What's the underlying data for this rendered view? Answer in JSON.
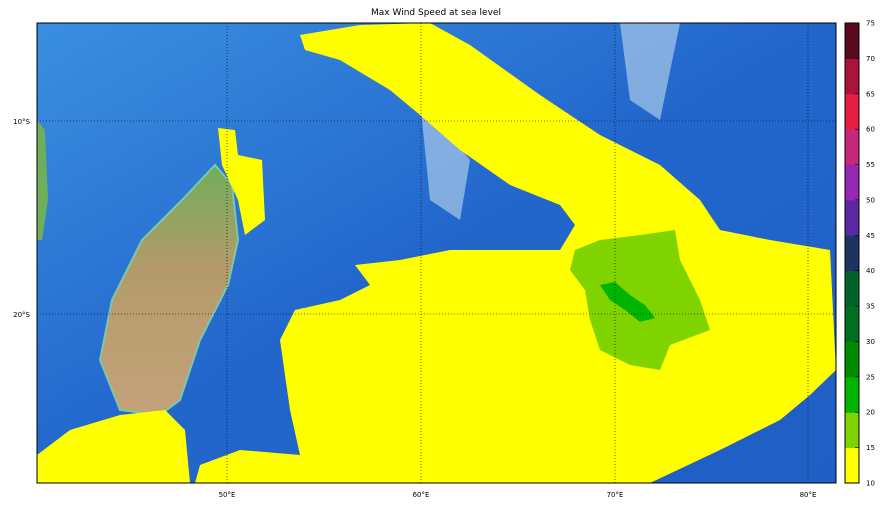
{
  "title": "Max Wind Speed at sea level",
  "map": {
    "lon_labels": [
      "50°E",
      "60°E",
      "70°E",
      "80°E"
    ],
    "lat_labels": [
      "10°S",
      "20°S"
    ],
    "gridlines": true
  },
  "colorbar": {
    "ticks": [
      "10",
      "15",
      "20",
      "25",
      "30",
      "35",
      "40",
      "45",
      "50",
      "55",
      "60",
      "65",
      "70",
      "75"
    ],
    "colors": [
      "#ffff00",
      "#7fd400",
      "#00b400",
      "#008c00",
      "#007020",
      "#006428",
      "#1e3264",
      "#5a28a0",
      "#9628b4",
      "#c8287a",
      "#e61e46",
      "#aa143c",
      "#5a0a1e"
    ]
  }
}
